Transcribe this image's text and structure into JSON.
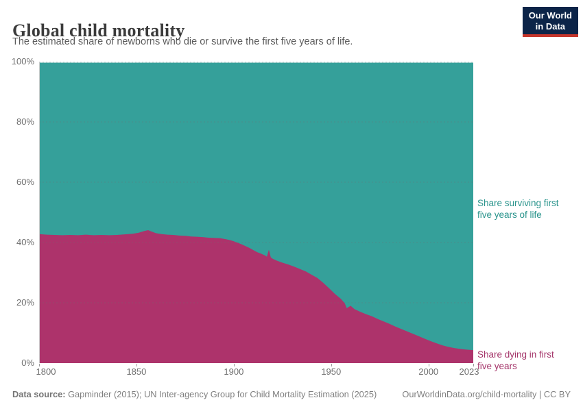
{
  "header": {
    "title": "Global child mortality",
    "subtitle": "The estimated share of newborns who die or survive the first five years of life.",
    "logo": {
      "line1": "Our World",
      "line2": "in Data"
    }
  },
  "chart_data": {
    "type": "area",
    "stacked": true,
    "title": "Global child mortality",
    "xlabel": "",
    "ylabel": "",
    "x_range": [
      1800,
      2023
    ],
    "y_range": [
      0,
      100
    ],
    "grid": true,
    "grid_style": "dashed",
    "y_ticks": [
      {
        "value": 100,
        "label": "100%"
      },
      {
        "value": 80,
        "label": "80%"
      },
      {
        "value": 60,
        "label": "60%"
      },
      {
        "value": 40,
        "label": "40%"
      },
      {
        "value": 20,
        "label": "20%"
      },
      {
        "value": 0,
        "label": "0%"
      }
    ],
    "x_ticks": [
      {
        "value": 1800,
        "label": "1800"
      },
      {
        "value": 1850,
        "label": "1850"
      },
      {
        "value": 1900,
        "label": "1900"
      },
      {
        "value": 1950,
        "label": "1950"
      },
      {
        "value": 2000,
        "label": "2000"
      },
      {
        "value": 2023,
        "label": "2023"
      }
    ],
    "x": [
      1800,
      1804,
      1808,
      1812,
      1816,
      1820,
      1824,
      1828,
      1832,
      1836,
      1840,
      1844,
      1848,
      1851,
      1854,
      1856,
      1858,
      1860,
      1863,
      1866,
      1869,
      1872,
      1875,
      1878,
      1881,
      1884,
      1887,
      1890,
      1893,
      1896,
      1898,
      1900,
      1902,
      1904,
      1906,
      1908,
      1910,
      1912,
      1914,
      1916,
      1917,
      1918,
      1919,
      1920,
      1922,
      1925,
      1928,
      1931,
      1934,
      1937,
      1940,
      1943,
      1946,
      1949,
      1952,
      1955,
      1957,
      1958,
      1960,
      1962,
      1965,
      1968,
      1971,
      1974,
      1977,
      1980,
      1983,
      1986,
      1989,
      1992,
      1995,
      1998,
      2001,
      2004,
      2007,
      2010,
      2013,
      2016,
      2019,
      2023
    ],
    "series": [
      {
        "name": "Share dying in first five years",
        "color": "#ad336b",
        "values": [
          42.8,
          42.6,
          42.5,
          42.4,
          42.5,
          42.4,
          42.6,
          42.4,
          42.5,
          42.4,
          42.5,
          42.7,
          42.9,
          43.2,
          43.8,
          44.1,
          43.6,
          43.1,
          42.8,
          42.6,
          42.5,
          42.3,
          42.2,
          42.0,
          41.9,
          41.8,
          41.6,
          41.5,
          41.4,
          41.1,
          40.8,
          40.4,
          39.9,
          39.4,
          38.8,
          38.2,
          37.5,
          36.8,
          36.3,
          35.7,
          35.3,
          37.6,
          35.1,
          34.6,
          34.0,
          33.3,
          32.7,
          32.0,
          31.2,
          30.4,
          29.3,
          28.2,
          26.6,
          24.8,
          22.9,
          21.3,
          19.8,
          18.2,
          19.0,
          17.9,
          17.0,
          16.2,
          15.5,
          14.6,
          13.8,
          13.0,
          12.1,
          11.3,
          10.5,
          9.7,
          8.9,
          8.1,
          7.3,
          6.6,
          5.9,
          5.4,
          5.0,
          4.7,
          4.5,
          4.3
        ]
      },
      {
        "name": "Share surviving first five years of life",
        "color": "#35a09a",
        "values": [
          57.2,
          57.4,
          57.5,
          57.6,
          57.5,
          57.6,
          57.4,
          57.6,
          57.5,
          57.6,
          57.5,
          57.3,
          57.1,
          56.8,
          56.2,
          55.9,
          56.4,
          56.9,
          57.2,
          57.4,
          57.5,
          57.7,
          57.8,
          58.0,
          58.1,
          58.2,
          58.4,
          58.5,
          58.6,
          58.9,
          59.2,
          59.6,
          60.1,
          60.6,
          61.2,
          61.8,
          62.5,
          63.2,
          63.7,
          64.3,
          64.7,
          62.4,
          64.9,
          65.4,
          66.0,
          66.7,
          67.3,
          68.0,
          68.8,
          69.6,
          70.7,
          71.8,
          73.4,
          75.2,
          77.1,
          78.7,
          80.2,
          81.8,
          81.0,
          82.1,
          83.0,
          83.8,
          84.5,
          85.4,
          86.2,
          87.0,
          87.9,
          88.7,
          89.5,
          90.3,
          91.1,
          91.9,
          92.7,
          93.4,
          94.1,
          94.6,
          95.0,
          95.3,
          95.5,
          95.7
        ]
      }
    ],
    "legend_position": "right-edge-annotations"
  },
  "annotations": {
    "surviving": {
      "line1": "Share surviving first",
      "line2": "five years of life"
    },
    "dying": {
      "line1": "Share dying in first",
      "line2": "five years"
    }
  },
  "footer": {
    "source_label": "Data source:",
    "source_text": " Gapminder (2015); UN Inter-agency Group for Child Mortality Estimation (2025)",
    "link": "OurWorldinData.org/child-mortality | CC BY"
  },
  "colors": {
    "surviving_area": "#35a09a",
    "dying_area": "#ad336b",
    "surviving_label": "#2a948c",
    "dying_label": "#a43469",
    "logo_bg": "#0c2448",
    "logo_red": "#c5352b",
    "gridline": "#6e6e6e",
    "axis_text": "#6e6e6e"
  }
}
